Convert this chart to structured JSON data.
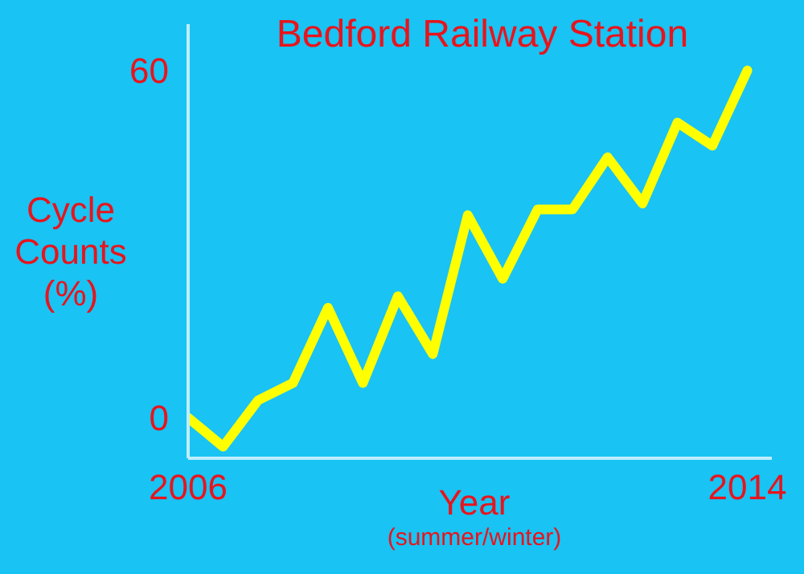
{
  "chart_data": {
    "type": "line",
    "title": "Bedford Railway Station",
    "xlabel": "Year",
    "ylabel": "Cycle Counts (%)",
    "annotations": [
      "(summer/winter)"
    ],
    "x": [
      2006,
      2006.5,
      2007,
      2007.5,
      2008,
      2008.5,
      2009,
      2009.5,
      2010,
      2010.5,
      2011,
      2011.5,
      2012,
      2012.5,
      2013,
      2013.5,
      2014
    ],
    "series": [
      {
        "color": "#ffff00",
        "values": [
          0,
          -5,
          3,
          6,
          19,
          6,
          21,
          11,
          35,
          24,
          36,
          36,
          45,
          37,
          51,
          47,
          60
        ]
      }
    ],
    "xlim": [
      2006,
      2014.35
    ],
    "xticks": [
      2006,
      2014
    ],
    "ylim": [
      -7,
      68
    ],
    "yticks": [
      0,
      60
    ],
    "grid": false,
    "legend": false,
    "marker": "none",
    "line_style": "solid"
  }
}
